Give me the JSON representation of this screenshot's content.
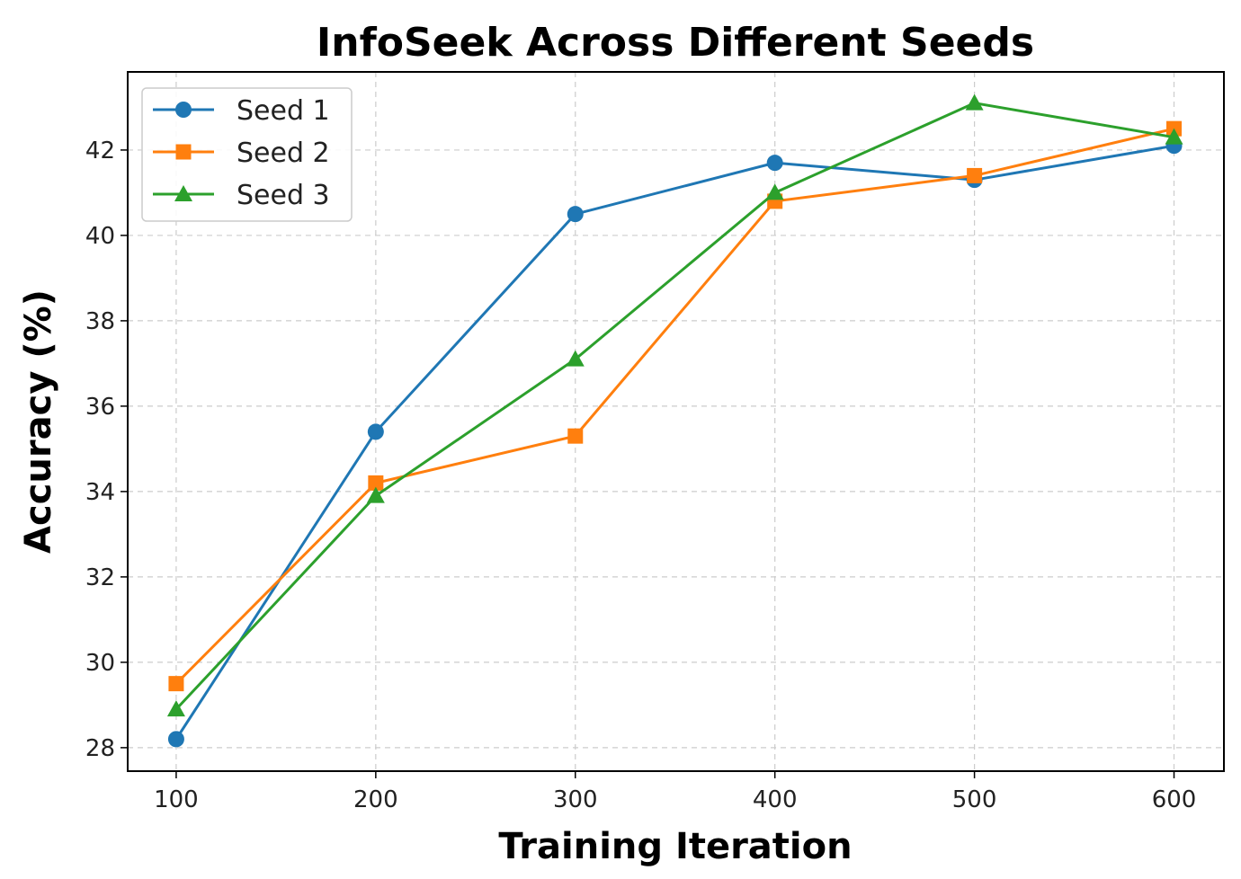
{
  "chart_data": {
    "type": "line",
    "title": "InfoSeek Across Different Seeds",
    "xlabel": "Training Iteration",
    "ylabel": "Accuracy (%)",
    "x": [
      100,
      200,
      300,
      400,
      500,
      600
    ],
    "xticks": [
      100,
      200,
      300,
      400,
      500,
      600
    ],
    "yticks": [
      28,
      30,
      32,
      34,
      36,
      38,
      40,
      42
    ],
    "xlim": [
      75.7,
      625
    ],
    "ylim": [
      27.45,
      43.83
    ],
    "grid": true,
    "legend_position": "top-left",
    "series": [
      {
        "name": "Seed 1",
        "values": [
          28.2,
          35.4,
          40.5,
          41.7,
          41.3,
          42.1
        ],
        "color": "#1f77b4",
        "marker": "circle"
      },
      {
        "name": "Seed 2",
        "values": [
          29.5,
          34.2,
          35.3,
          40.8,
          41.4,
          42.5
        ],
        "color": "#ff7f0e",
        "marker": "square"
      },
      {
        "name": "Seed 3",
        "values": [
          28.9,
          33.9,
          37.1,
          41.0,
          43.1,
          42.3
        ],
        "color": "#2ca02c",
        "marker": "triangle"
      }
    ]
  }
}
